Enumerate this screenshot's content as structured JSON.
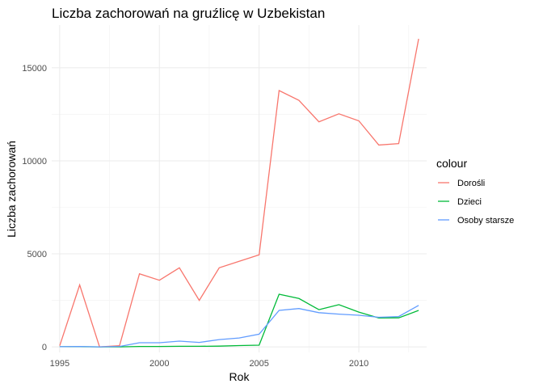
{
  "chart_data": {
    "type": "line",
    "title": "Liczba zachorowań na gruźlicę w Uzbekistan",
    "xlabel": "Rok",
    "ylabel": "Liczba zachorowań",
    "xlim": [
      1994.6,
      2013.4
    ],
    "ylim": [
      -300,
      17300
    ],
    "x_ticks": [
      1995,
      2000,
      2005,
      2010
    ],
    "y_ticks": [
      0,
      5000,
      10000,
      15000
    ],
    "grid": true,
    "legend": {
      "title": "colour",
      "position": "right"
    },
    "x": [
      1995,
      1996,
      1997,
      1998,
      1999,
      2000,
      2001,
      2002,
      2003,
      2004,
      2005,
      2006,
      2007,
      2008,
      2009,
      2010,
      2011,
      2012,
      2013
    ],
    "series": [
      {
        "name": "Dorośli",
        "color": "#F8766D",
        "values": [
          60,
          3330,
          0,
          60,
          3930,
          3580,
          4250,
          2500,
          4250,
          4600,
          4950,
          13780,
          13250,
          12100,
          12530,
          12150,
          10850,
          10930,
          16560
        ]
      },
      {
        "name": "Dzieci",
        "color": "#00BA38",
        "values": [
          10,
          10,
          0,
          0,
          20,
          20,
          30,
          30,
          40,
          70,
          90,
          2830,
          2600,
          2000,
          2270,
          1870,
          1550,
          1560,
          1960
        ]
      },
      {
        "name": "Osoby starsze",
        "color": "#619CFF",
        "values": [
          10,
          20,
          0,
          20,
          220,
          220,
          310,
          240,
          390,
          480,
          680,
          1960,
          2060,
          1840,
          1760,
          1700,
          1590,
          1630,
          2230
        ]
      }
    ]
  }
}
